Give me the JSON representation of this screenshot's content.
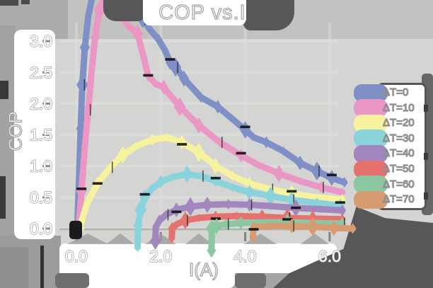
{
  "title": "COP vs.I",
  "axes": {
    "xlabel": "I(A)",
    "ylabel": "COP",
    "x_ticks": [
      {
        "label": "0.0",
        "value": 0
      },
      {
        "label": "2.0",
        "value": 2
      },
      {
        "label": "4.0",
        "value": 4
      },
      {
        "label": "6.0",
        "value": 6
      }
    ],
    "y_ticks": [
      {
        "label": "0.0",
        "value": 0
      },
      {
        "label": "0.5",
        "value": 0.5
      },
      {
        "label": "1.0",
        "value": 1
      },
      {
        "label": "1.5",
        "value": 1.5
      },
      {
        "label": "2.0",
        "value": 2
      },
      {
        "label": "2.5",
        "value": 2.5
      },
      {
        "label": "3.0",
        "value": 3
      }
    ]
  },
  "legend": {
    "position": "right",
    "entries": [
      {
        "label": "ΔT=0",
        "color": "#7e90c6"
      },
      {
        "label": "ΔT=10",
        "color": "#ea97c5"
      },
      {
        "label": "ΔT=20",
        "color": "#f7f29d"
      },
      {
        "label": "ΔT=30",
        "color": "#8ad2dc"
      },
      {
        "label": "ΔT=40",
        "color": "#a287bf"
      },
      {
        "label": "ΔT=50",
        "color": "#e5726f"
      },
      {
        "label": "ΔT=60",
        "color": "#8bc8a2"
      },
      {
        "label": "ΔT=70",
        "color": "#d79b71"
      }
    ]
  },
  "chart_data": {
    "type": "line",
    "title": "COP vs.I",
    "xlabel": "I(A)",
    "ylabel": "COP",
    "xlim": [
      -0.4,
      6.8
    ],
    "ylim": [
      -0.4,
      3.7
    ],
    "x_tick_values": [
      0,
      2,
      4,
      6
    ],
    "y_tick_values": [
      0,
      0.5,
      1,
      1.5,
      2,
      2.5,
      3
    ],
    "grid": true,
    "legend_position": "right",
    "style": "xkcd-thick-bands",
    "series": [
      {
        "name": "ΔT=0",
        "color": "#7e90c6",
        "points": [
          [
            0.02,
            0
          ],
          [
            0.06,
            0.8
          ],
          [
            0.1,
            1.6
          ],
          [
            0.14,
            2.3
          ],
          [
            0.2,
            2.9
          ],
          [
            0.28,
            3.4
          ],
          [
            0.38,
            3.72
          ],
          [
            1.5,
            3.72
          ],
          [
            1.57,
            3.35
          ],
          [
            1.75,
            3.18
          ],
          [
            1.95,
            3.02
          ],
          [
            2.1,
            2.85
          ],
          [
            2.22,
            2.66
          ],
          [
            2.35,
            2.58
          ],
          [
            2.55,
            2.4
          ],
          [
            2.95,
            2.1
          ],
          [
            3.35,
            1.95
          ],
          [
            3.65,
            1.78
          ],
          [
            4.0,
            1.58
          ],
          [
            4.2,
            1.46
          ],
          [
            4.5,
            1.38
          ],
          [
            4.9,
            1.24
          ],
          [
            5.3,
            1.05
          ],
          [
            5.7,
            0.92
          ],
          [
            6.05,
            0.81
          ],
          [
            6.35,
            0.74
          ]
        ]
      },
      {
        "name": "ΔT=10",
        "color": "#ea97c5",
        "points": [
          [
            0.05,
            0
          ],
          [
            0.12,
            0.6
          ],
          [
            0.2,
            1.3
          ],
          [
            0.28,
            1.9
          ],
          [
            0.36,
            2.5
          ],
          [
            0.44,
            3.05
          ],
          [
            0.55,
            3.5
          ],
          [
            0.68,
            3.72
          ],
          [
            1.02,
            3.72
          ],
          [
            1.08,
            3.4
          ],
          [
            1.22,
            3.25
          ],
          [
            1.45,
            3.12
          ],
          [
            1.58,
            2.78
          ],
          [
            1.7,
            2.45
          ],
          [
            1.87,
            2.32
          ],
          [
            2.07,
            2.26
          ],
          [
            2.45,
            1.95
          ],
          [
            2.9,
            1.65
          ],
          [
            3.4,
            1.38
          ],
          [
            3.9,
            1.17
          ],
          [
            4.3,
            1.02
          ],
          [
            4.8,
            0.88
          ],
          [
            5.3,
            0.76
          ],
          [
            5.8,
            0.66
          ],
          [
            6.3,
            0.58
          ]
        ]
      },
      {
        "name": "ΔT=20",
        "color": "#f7f29d",
        "points": [
          [
            0.07,
            0
          ],
          [
            0.25,
            0.4
          ],
          [
            0.5,
            0.72
          ],
          [
            0.8,
            0.98
          ],
          [
            1.1,
            1.18
          ],
          [
            1.45,
            1.33
          ],
          [
            1.8,
            1.42
          ],
          [
            2.15,
            1.46
          ],
          [
            2.5,
            1.38
          ],
          [
            2.9,
            1.22
          ],
          [
            3.3,
            1.0
          ],
          [
            3.7,
            0.84
          ],
          [
            4.1,
            0.72
          ],
          [
            4.6,
            0.63
          ],
          [
            5.1,
            0.56
          ],
          [
            5.7,
            0.5
          ],
          [
            6.3,
            0.46
          ]
        ]
      },
      {
        "name": "ΔT=30",
        "color": "#8ad2dc",
        "points": [
          [
            1.45,
            -0.3
          ],
          [
            1.46,
            0.05
          ],
          [
            1.52,
            0.3
          ],
          [
            1.62,
            0.5
          ],
          [
            1.78,
            0.63
          ],
          [
            2.0,
            0.75
          ],
          [
            2.3,
            0.83
          ],
          [
            2.62,
            0.87
          ],
          [
            2.95,
            0.84
          ],
          [
            3.3,
            0.76
          ],
          [
            3.7,
            0.66
          ],
          [
            4.1,
            0.58
          ],
          [
            4.6,
            0.52
          ],
          [
            5.1,
            0.46
          ],
          [
            5.7,
            0.41
          ],
          [
            6.25,
            0.37
          ]
        ]
      },
      {
        "name": "ΔT=40",
        "color": "#a287bf",
        "points": [
          [
            1.87,
            -0.2
          ],
          [
            1.88,
            0.02
          ],
          [
            1.97,
            0.13
          ],
          [
            2.12,
            0.22
          ],
          [
            2.37,
            0.3
          ],
          [
            2.7,
            0.35
          ],
          [
            3.1,
            0.38
          ],
          [
            3.6,
            0.39
          ],
          [
            4.1,
            0.38
          ],
          [
            4.6,
            0.36
          ],
          [
            5.2,
            0.33
          ],
          [
            5.8,
            0.31
          ],
          [
            6.3,
            0.29
          ]
        ]
      },
      {
        "name": "ΔT=50",
        "color": "#e5726f",
        "points": [
          [
            2.26,
            -0.15
          ],
          [
            2.27,
            0.0
          ],
          [
            2.38,
            0.07
          ],
          [
            2.58,
            0.13
          ],
          [
            2.9,
            0.17
          ],
          [
            3.3,
            0.19
          ],
          [
            3.8,
            0.2
          ],
          [
            4.4,
            0.19
          ],
          [
            5.0,
            0.17
          ],
          [
            5.6,
            0.16
          ],
          [
            6.3,
            0.15
          ]
        ]
      },
      {
        "name": "ΔT=60",
        "color": "#8bc8a2",
        "points": [
          [
            3.2,
            -0.35
          ],
          [
            3.21,
            0.0
          ],
          [
            3.32,
            0.04
          ],
          [
            3.55,
            0.07
          ],
          [
            3.9,
            0.09
          ],
          [
            4.4,
            0.1
          ],
          [
            5.0,
            0.1
          ],
          [
            5.6,
            0.09
          ],
          [
            6.3,
            0.08
          ]
        ]
      },
      {
        "name": "ΔT=70",
        "color": "#d79b71",
        "points": [
          [
            4.18,
            -0.15
          ],
          [
            4.2,
            0.02
          ],
          [
            4.6,
            0.04
          ],
          [
            5.1,
            0.04
          ],
          [
            5.6,
            0.03
          ],
          [
            6.1,
            0.01
          ],
          [
            6.55,
            0.0
          ]
        ]
      }
    ]
  }
}
